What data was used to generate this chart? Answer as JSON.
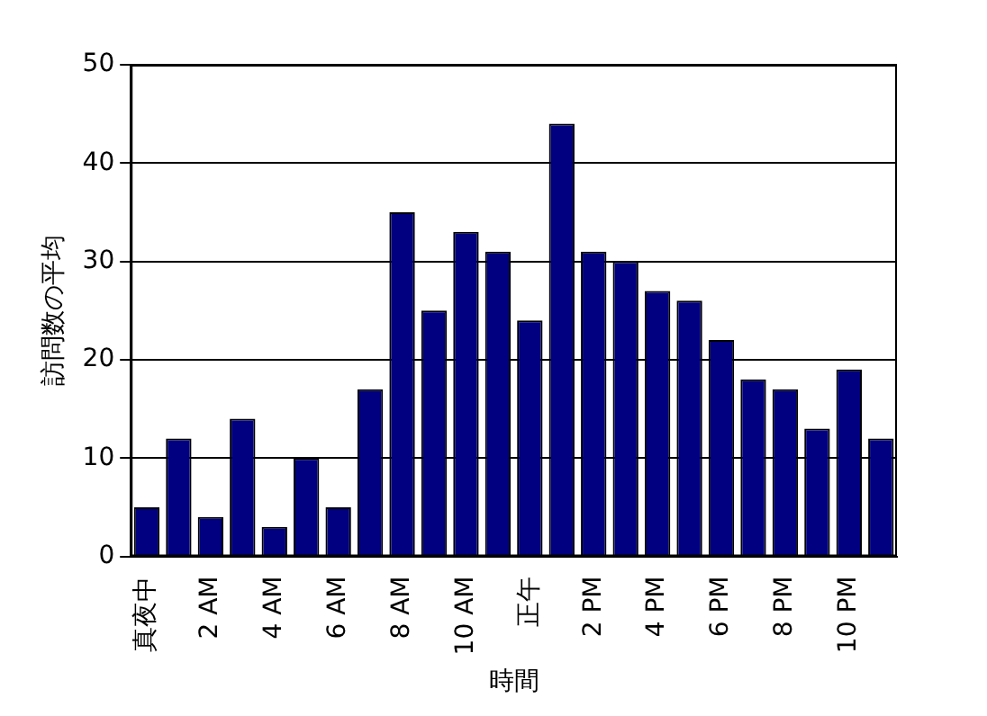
{
  "chart_data": {
    "type": "bar",
    "xlabel": "時間",
    "ylabel": "訪問数の平均",
    "categories": [
      "真夜中",
      null,
      "2 AM",
      null,
      "4 AM",
      null,
      "6 AM",
      null,
      "8 AM",
      null,
      "10 AM",
      null,
      "正午",
      null,
      "2 PM",
      null,
      "4 PM",
      null,
      "6 PM",
      null,
      "8 PM",
      null,
      "10 PM",
      null
    ],
    "values": [
      5,
      12,
      4,
      14,
      3,
      10,
      5,
      17,
      35,
      25,
      33,
      31,
      24,
      44,
      31,
      30,
      27,
      26,
      22,
      18,
      17,
      13,
      19,
      12
    ],
    "color": "#000080",
    "ylim": [
      0,
      50
    ],
    "yticks": [
      0,
      10,
      20,
      30,
      40,
      50
    ],
    "grid": "y",
    "legend": false
  }
}
